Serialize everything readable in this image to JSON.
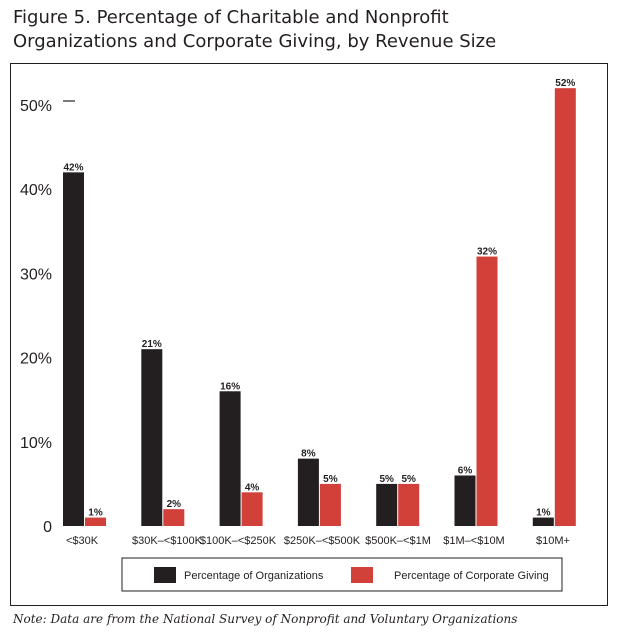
{
  "title_line1": "Figure 5. Percentage of Charitable and Nonprofit",
  "title_line2": "Organizations and Corporate Giving, by Revenue Size",
  "note": "Note: Data are from the National Survey of Nonprofit and Voluntary Organizations",
  "colors": {
    "organizations": "#231f20",
    "giving": "#d2403a"
  },
  "chart_data": {
    "type": "bar",
    "title": "Figure 5. Percentage of Charitable and Nonprofit Organizations and Corporate Giving, by Revenue Size",
    "xlabel": "",
    "ylabel": "",
    "ylim": [
      0,
      52
    ],
    "yticks": [
      "0",
      "10%",
      "20%",
      "30%",
      "40%",
      "50%"
    ],
    "ytick_values": [
      0,
      10,
      20,
      30,
      40,
      50
    ],
    "categories": [
      "<$30K",
      "$30K–<$100K",
      "$100K–<$250K",
      "$250K–<$500K",
      "$500K–<$1M",
      "$1M–<$10M",
      "$10M+"
    ],
    "series": [
      {
        "name": "Percentage of Organizations",
        "values": [
          42,
          21,
          16,
          8,
          5,
          6,
          1
        ],
        "labels": [
          "42%",
          "21%",
          "16%",
          "8%",
          "5%",
          "6%",
          "1%"
        ]
      },
      {
        "name": "Percentage of Corporate Giving",
        "values": [
          1,
          2,
          4,
          5,
          5,
          32,
          52
        ],
        "labels": [
          "1%",
          "2%",
          "4%",
          "5%",
          "5%",
          "32%",
          "52%"
        ]
      }
    ],
    "legend_position": "bottom",
    "grid": false
  }
}
